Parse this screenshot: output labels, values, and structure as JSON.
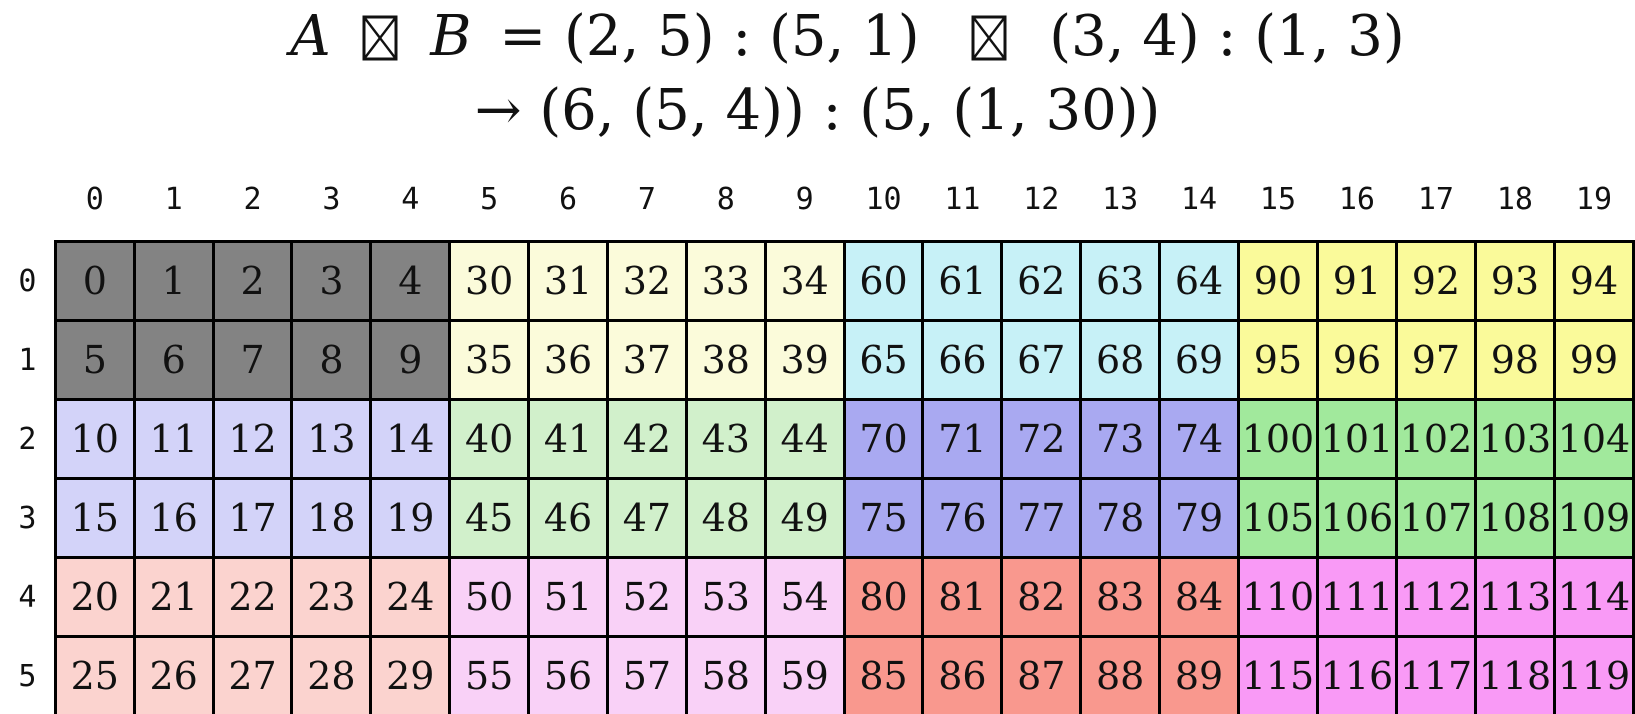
{
  "title": {
    "a": "A",
    "operator": "⊠",
    "b": "B",
    "equals_lhs": "= (2, 5) : (5, 1)",
    "rhs": "(3, 4) : (1, 3)",
    "line2": "→ (6, (5, 4)) : (5, (1, 30))"
  },
  "grid": {
    "column_headers": [
      "0",
      "1",
      "2",
      "3",
      "4",
      "5",
      "6",
      "7",
      "8",
      "9",
      "10",
      "11",
      "12",
      "13",
      "14",
      "15",
      "16",
      "17",
      "18",
      "19"
    ],
    "row_headers": [
      "0",
      "1",
      "2",
      "3",
      "4",
      "5"
    ],
    "rows": [
      [
        0,
        1,
        2,
        3,
        4,
        30,
        31,
        32,
        33,
        34,
        60,
        61,
        62,
        63,
        64,
        90,
        91,
        92,
        93,
        94
      ],
      [
        5,
        6,
        7,
        8,
        9,
        35,
        36,
        37,
        38,
        39,
        65,
        66,
        67,
        68,
        69,
        95,
        96,
        97,
        98,
        99
      ],
      [
        10,
        11,
        12,
        13,
        14,
        40,
        41,
        42,
        43,
        44,
        70,
        71,
        72,
        73,
        74,
        100,
        101,
        102,
        103,
        104
      ],
      [
        15,
        16,
        17,
        18,
        19,
        45,
        46,
        47,
        48,
        49,
        75,
        76,
        77,
        78,
        79,
        105,
        106,
        107,
        108,
        109
      ],
      [
        20,
        21,
        22,
        23,
        24,
        50,
        51,
        52,
        53,
        54,
        80,
        81,
        82,
        83,
        84,
        110,
        111,
        112,
        113,
        114
      ],
      [
        25,
        26,
        27,
        28,
        29,
        55,
        56,
        57,
        58,
        59,
        85,
        86,
        87,
        88,
        89,
        115,
        116,
        117,
        118,
        119
      ]
    ],
    "block_size": {
      "rows": 2,
      "cols": 5
    },
    "block_colors": [
      [
        "#838383",
        "#FBFBDA",
        "#C7F1F7",
        "#FAFA9A"
      ],
      [
        "#D3D3F9",
        "#D1F0CB",
        "#A9A9F1",
        "#A1E99C"
      ],
      [
        "#FBD3CF",
        "#F9D1F7",
        "#F9988E",
        "#F99AF6"
      ]
    ],
    "border_color": "#000000",
    "text_color": "#111111"
  }
}
